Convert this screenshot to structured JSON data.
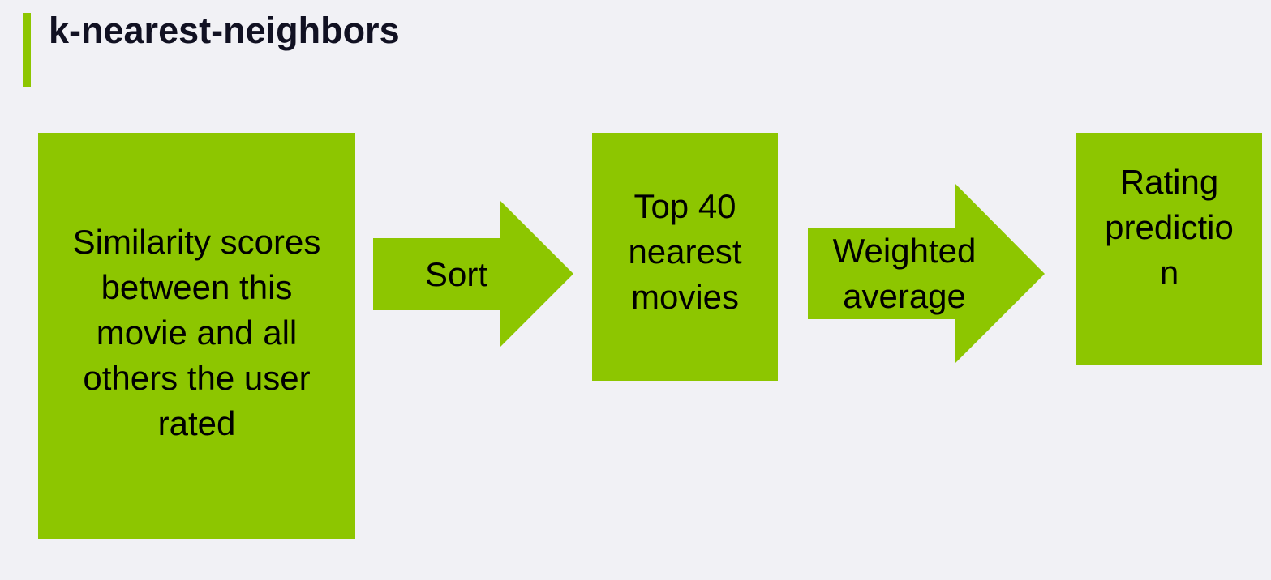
{
  "title": "k-nearest-neighbors",
  "accent_color": "#8dc600",
  "flow": {
    "step1": "Similarity scores\nbetween this\nmovie and all\nothers the user\nrated",
    "arrow1": "Sort",
    "step2": "Top 40\nnearest\nmovies",
    "arrow2": "Weighted\naverage",
    "step3": "Rating\npredictio\nn"
  }
}
